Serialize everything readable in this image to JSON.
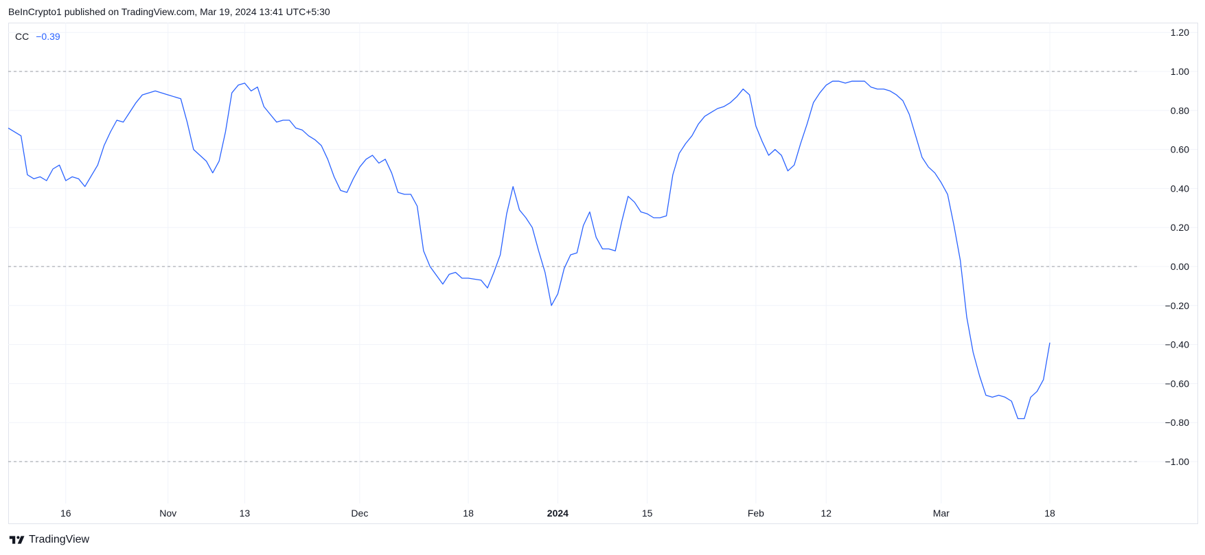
{
  "header": {
    "published_text": "BeInCrypto1 published on TradingView.com, Mar 19, 2024 13:41 UTC+5:30"
  },
  "legend": {
    "symbol": "CC",
    "value": "−0.39"
  },
  "footer": {
    "brand": "TradingView"
  },
  "colors": {
    "line": "#2962ff",
    "grid": "#f0f3fa",
    "ref_line": "#9598a1",
    "axis_text": "#131722"
  },
  "chart_data": {
    "type": "line",
    "ylim": [
      -1.2,
      1.2
    ],
    "y_ticks": [
      "1.20",
      "1.00",
      "0.80",
      "0.60",
      "0.40",
      "0.20",
      "0.00",
      "−0.20",
      "−0.40",
      "−0.60",
      "−0.80",
      "−1.00"
    ],
    "y_tick_values": [
      1.2,
      1.0,
      0.8,
      0.6,
      0.4,
      0.2,
      0.0,
      -0.2,
      -0.4,
      -0.6,
      -0.8,
      -1.0
    ],
    "reference_lines": [
      1.0,
      0.0,
      -1.0
    ],
    "x_ticks": [
      {
        "label": "16",
        "date": "2023-10-16",
        "bold": false
      },
      {
        "label": "Nov",
        "date": "2023-11-01",
        "bold": false
      },
      {
        "label": "13",
        "date": "2023-11-13",
        "bold": false
      },
      {
        "label": "Dec",
        "date": "2023-12-01",
        "bold": false
      },
      {
        "label": "18",
        "date": "2023-12-18",
        "bold": false
      },
      {
        "label": "2024",
        "date": "2024-01-01",
        "bold": true
      },
      {
        "label": "15",
        "date": "2024-01-15",
        "bold": false
      },
      {
        "label": "Feb",
        "date": "2024-02-01",
        "bold": false
      },
      {
        "label": "12",
        "date": "2024-02-12",
        "bold": false
      },
      {
        "label": "Mar",
        "date": "2024-03-01",
        "bold": false
      },
      {
        "label": "18",
        "date": "2024-03-18",
        "bold": false
      }
    ],
    "x_range": [
      "2023-10-07",
      "2024-03-31"
    ],
    "series": [
      {
        "values": [
          [
            "2023-10-07",
            0.71
          ],
          [
            "2023-10-09",
            0.67
          ],
          [
            "2023-10-10",
            0.47
          ],
          [
            "2023-10-11",
            0.45
          ],
          [
            "2023-10-12",
            0.46
          ],
          [
            "2023-10-13",
            0.44
          ],
          [
            "2023-10-14",
            0.5
          ],
          [
            "2023-10-15",
            0.52
          ],
          [
            "2023-10-16",
            0.44
          ],
          [
            "2023-10-17",
            0.46
          ],
          [
            "2023-10-18",
            0.45
          ],
          [
            "2023-10-19",
            0.41
          ],
          [
            "2023-10-21",
            0.52
          ],
          [
            "2023-10-22",
            0.62
          ],
          [
            "2023-10-23",
            0.69
          ],
          [
            "2023-10-24",
            0.75
          ],
          [
            "2023-10-25",
            0.74
          ],
          [
            "2023-10-26",
            0.79
          ],
          [
            "2023-10-27",
            0.84
          ],
          [
            "2023-10-28",
            0.88
          ],
          [
            "2023-10-30",
            0.9
          ],
          [
            "2023-10-31",
            0.89
          ],
          [
            "2023-11-01",
            0.88
          ],
          [
            "2023-11-03",
            0.86
          ],
          [
            "2023-11-04",
            0.74
          ],
          [
            "2023-11-05",
            0.6
          ],
          [
            "2023-11-07",
            0.54
          ],
          [
            "2023-11-08",
            0.48
          ],
          [
            "2023-11-09",
            0.54
          ],
          [
            "2023-11-10",
            0.69
          ],
          [
            "2023-11-11",
            0.89
          ],
          [
            "2023-11-12",
            0.93
          ],
          [
            "2023-11-13",
            0.94
          ],
          [
            "2023-11-14",
            0.9
          ],
          [
            "2023-11-15",
            0.92
          ],
          [
            "2023-11-16",
            0.82
          ],
          [
            "2023-11-17",
            0.78
          ],
          [
            "2023-11-18",
            0.74
          ],
          [
            "2023-11-19",
            0.75
          ],
          [
            "2023-11-20",
            0.75
          ],
          [
            "2023-11-21",
            0.71
          ],
          [
            "2023-11-22",
            0.7
          ],
          [
            "2023-11-23",
            0.67
          ],
          [
            "2023-11-24",
            0.65
          ],
          [
            "2023-11-25",
            0.62
          ],
          [
            "2023-11-26",
            0.55
          ],
          [
            "2023-11-27",
            0.46
          ],
          [
            "2023-11-28",
            0.39
          ],
          [
            "2023-11-29",
            0.38
          ],
          [
            "2023-11-30",
            0.45
          ],
          [
            "2023-12-01",
            0.51
          ],
          [
            "2023-12-02",
            0.55
          ],
          [
            "2023-12-03",
            0.57
          ],
          [
            "2023-12-04",
            0.53
          ],
          [
            "2023-12-05",
            0.55
          ],
          [
            "2023-12-06",
            0.48
          ],
          [
            "2023-12-07",
            0.38
          ],
          [
            "2023-12-08",
            0.37
          ],
          [
            "2023-12-09",
            0.37
          ],
          [
            "2023-12-10",
            0.31
          ],
          [
            "2023-12-11",
            0.08
          ],
          [
            "2023-12-12",
            0.0
          ],
          [
            "2023-12-14",
            -0.09
          ],
          [
            "2023-12-15",
            -0.04
          ],
          [
            "2023-12-16",
            -0.03
          ],
          [
            "2023-12-17",
            -0.06
          ],
          [
            "2023-12-18",
            -0.06
          ],
          [
            "2023-12-20",
            -0.07
          ],
          [
            "2023-12-21",
            -0.11
          ],
          [
            "2023-12-22",
            -0.03
          ],
          [
            "2023-12-23",
            0.06
          ],
          [
            "2023-12-24",
            0.27
          ],
          [
            "2023-12-25",
            0.41
          ],
          [
            "2023-12-26",
            0.29
          ],
          [
            "2023-12-27",
            0.25
          ],
          [
            "2023-12-28",
            0.2
          ],
          [
            "2023-12-29",
            0.08
          ],
          [
            "2023-12-30",
            -0.03
          ],
          [
            "2023-12-31",
            -0.2
          ],
          [
            "2024-01-01",
            -0.14
          ],
          [
            "2024-01-02",
            -0.01
          ],
          [
            "2024-01-03",
            0.06
          ],
          [
            "2024-01-04",
            0.07
          ],
          [
            "2024-01-05",
            0.21
          ],
          [
            "2024-01-06",
            0.28
          ],
          [
            "2024-01-07",
            0.15
          ],
          [
            "2024-01-08",
            0.09
          ],
          [
            "2024-01-09",
            0.09
          ],
          [
            "2024-01-10",
            0.08
          ],
          [
            "2024-01-11",
            0.23
          ],
          [
            "2024-01-12",
            0.36
          ],
          [
            "2024-01-13",
            0.33
          ],
          [
            "2024-01-14",
            0.28
          ],
          [
            "2024-01-15",
            0.27
          ],
          [
            "2024-01-16",
            0.25
          ],
          [
            "2024-01-17",
            0.25
          ],
          [
            "2024-01-18",
            0.26
          ],
          [
            "2024-01-19",
            0.47
          ],
          [
            "2024-01-20",
            0.58
          ],
          [
            "2024-01-21",
            0.63
          ],
          [
            "2024-01-22",
            0.67
          ],
          [
            "2024-01-23",
            0.73
          ],
          [
            "2024-01-24",
            0.77
          ],
          [
            "2024-01-25",
            0.79
          ],
          [
            "2024-01-26",
            0.81
          ],
          [
            "2024-01-27",
            0.82
          ],
          [
            "2024-01-28",
            0.84
          ],
          [
            "2024-01-29",
            0.87
          ],
          [
            "2024-01-30",
            0.91
          ],
          [
            "2024-01-31",
            0.88
          ],
          [
            "2024-02-01",
            0.72
          ],
          [
            "2024-02-02",
            0.64
          ],
          [
            "2024-02-03",
            0.57
          ],
          [
            "2024-02-04",
            0.6
          ],
          [
            "2024-02-05",
            0.57
          ],
          [
            "2024-02-06",
            0.49
          ],
          [
            "2024-02-07",
            0.52
          ],
          [
            "2024-02-08",
            0.63
          ],
          [
            "2024-02-09",
            0.73
          ],
          [
            "2024-02-10",
            0.84
          ],
          [
            "2024-02-11",
            0.89
          ],
          [
            "2024-02-12",
            0.93
          ],
          [
            "2024-02-13",
            0.95
          ],
          [
            "2024-02-14",
            0.95
          ],
          [
            "2024-02-15",
            0.94
          ],
          [
            "2024-02-16",
            0.95
          ],
          [
            "2024-02-17",
            0.95
          ],
          [
            "2024-02-18",
            0.95
          ],
          [
            "2024-02-19",
            0.92
          ],
          [
            "2024-02-20",
            0.91
          ],
          [
            "2024-02-21",
            0.91
          ],
          [
            "2024-02-22",
            0.9
          ],
          [
            "2024-02-23",
            0.88
          ],
          [
            "2024-02-24",
            0.85
          ],
          [
            "2024-02-25",
            0.78
          ],
          [
            "2024-02-26",
            0.67
          ],
          [
            "2024-02-27",
            0.56
          ],
          [
            "2024-02-28",
            0.51
          ],
          [
            "2024-02-29",
            0.48
          ],
          [
            "2024-03-01",
            0.43
          ],
          [
            "2024-03-02",
            0.37
          ],
          [
            "2024-03-03",
            0.21
          ],
          [
            "2024-03-04",
            0.03
          ],
          [
            "2024-03-05",
            -0.26
          ],
          [
            "2024-03-06",
            -0.44
          ],
          [
            "2024-03-07",
            -0.56
          ],
          [
            "2024-03-08",
            -0.66
          ],
          [
            "2024-03-09",
            -0.67
          ],
          [
            "2024-03-10",
            -0.66
          ],
          [
            "2024-03-11",
            -0.67
          ],
          [
            "2024-03-12",
            -0.69
          ],
          [
            "2024-03-13",
            -0.78
          ],
          [
            "2024-03-14",
            -0.78
          ],
          [
            "2024-03-15",
            -0.67
          ],
          [
            "2024-03-16",
            -0.64
          ],
          [
            "2024-03-17",
            -0.58
          ],
          [
            "2024-03-18",
            -0.39
          ]
        ]
      }
    ]
  }
}
